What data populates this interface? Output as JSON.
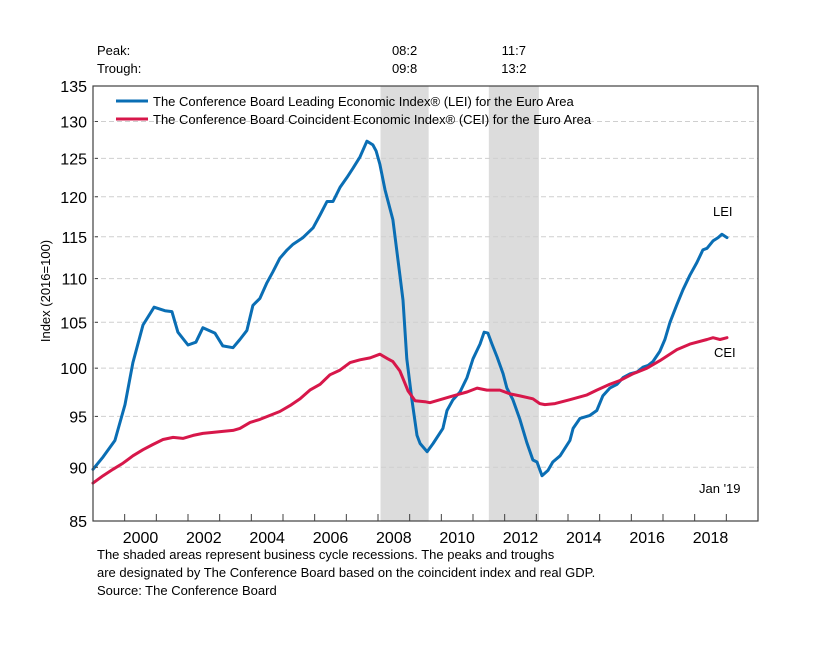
{
  "chart_data": {
    "type": "line",
    "title": "",
    "xlabel": "",
    "ylabel": "Index (2016=100)",
    "yscale": "log",
    "ylim": [
      85,
      135
    ],
    "xlim": [
      1999.0,
      2020.0
    ],
    "yticks": [
      85,
      90,
      95,
      100,
      105,
      110,
      115,
      120,
      125,
      130,
      135
    ],
    "xtick_labels": [
      "2000",
      "2002",
      "2004",
      "2006",
      "2008",
      "2010",
      "2012",
      "2014",
      "2016",
      "2018"
    ],
    "grid": "horizontal dashed",
    "legend_position": "top-left",
    "peak_trough": {
      "peak_label": "Peak:",
      "trough_label": "Trough:",
      "recessions": [
        {
          "peak": "08:2",
          "trough": "09:8",
          "start": 2008.08,
          "end": 2009.6
        },
        {
          "peak": "11:7",
          "trough": "13:2",
          "start": 2011.5,
          "end": 2013.08
        }
      ]
    },
    "annotations": {
      "lei_label": "LEI",
      "cei_label": "CEI",
      "date_label": "Jan '19"
    },
    "series": [
      {
        "name": "The Conference Board Leading Economic Index® (LEI) for the Euro Area",
        "short": "LEI",
        "color": "#0a6eb4",
        "points": [
          [
            1999.0,
            89.8
          ],
          [
            1999.32,
            91.0
          ],
          [
            1999.69,
            92.6
          ],
          [
            2000.01,
            96.2
          ],
          [
            2000.26,
            100.6
          ],
          [
            2000.58,
            104.7
          ],
          [
            2000.93,
            106.7
          ],
          [
            2001.27,
            106.3
          ],
          [
            2001.49,
            106.2
          ],
          [
            2001.68,
            103.9
          ],
          [
            2002.0,
            102.5
          ],
          [
            2002.25,
            102.8
          ],
          [
            2002.47,
            104.4
          ],
          [
            2002.85,
            103.8
          ],
          [
            2003.1,
            102.4
          ],
          [
            2003.42,
            102.2
          ],
          [
            2003.64,
            103.1
          ],
          [
            2003.86,
            104.1
          ],
          [
            2004.05,
            106.9
          ],
          [
            2004.27,
            107.7
          ],
          [
            2004.49,
            109.5
          ],
          [
            2004.68,
            110.8
          ],
          [
            2004.9,
            112.4
          ],
          [
            2005.13,
            113.4
          ],
          [
            2005.32,
            114.1
          ],
          [
            2005.63,
            114.9
          ],
          [
            2005.95,
            116.1
          ],
          [
            2006.17,
            117.7
          ],
          [
            2006.39,
            119.4
          ],
          [
            2006.58,
            119.4
          ],
          [
            2006.8,
            121.2
          ],
          [
            2007.02,
            122.5
          ],
          [
            2007.21,
            123.7
          ],
          [
            2007.43,
            125.2
          ],
          [
            2007.65,
            127.3
          ],
          [
            2007.84,
            126.8
          ],
          [
            2007.94,
            126.0
          ],
          [
            2008.06,
            124.2
          ],
          [
            2008.22,
            120.9
          ],
          [
            2008.47,
            117.1
          ],
          [
            2008.69,
            110.4
          ],
          [
            2008.79,
            107.5
          ],
          [
            2008.91,
            101.0
          ],
          [
            2009.07,
            96.7
          ],
          [
            2009.23,
            93.1
          ],
          [
            2009.33,
            92.3
          ],
          [
            2009.55,
            91.5
          ],
          [
            2009.74,
            92.3
          ],
          [
            2010.05,
            93.8
          ],
          [
            2010.18,
            95.6
          ],
          [
            2010.37,
            96.7
          ],
          [
            2010.59,
            97.5
          ],
          [
            2010.81,
            99.0
          ],
          [
            2011.0,
            101.0
          ],
          [
            2011.22,
            102.6
          ],
          [
            2011.35,
            103.9
          ],
          [
            2011.47,
            103.8
          ],
          [
            2011.6,
            102.6
          ],
          [
            2011.76,
            101.2
          ],
          [
            2011.95,
            99.4
          ],
          [
            2012.07,
            97.9
          ],
          [
            2012.26,
            96.7
          ],
          [
            2012.48,
            94.7
          ],
          [
            2012.7,
            92.4
          ],
          [
            2012.89,
            90.7
          ],
          [
            2013.02,
            90.5
          ],
          [
            2013.18,
            89.2
          ],
          [
            2013.37,
            89.7
          ],
          [
            2013.52,
            90.5
          ],
          [
            2013.75,
            91.1
          ],
          [
            2014.06,
            92.6
          ],
          [
            2014.16,
            93.8
          ],
          [
            2014.38,
            94.8
          ],
          [
            2014.69,
            95.1
          ],
          [
            2014.91,
            95.6
          ],
          [
            2015.1,
            97.1
          ],
          [
            2015.32,
            97.9
          ],
          [
            2015.55,
            98.3
          ],
          [
            2015.74,
            99.0
          ],
          [
            2015.96,
            99.4
          ],
          [
            2016.18,
            99.6
          ],
          [
            2016.37,
            100.1
          ],
          [
            2016.53,
            100.3
          ],
          [
            2016.68,
            100.7
          ],
          [
            2016.9,
            101.8
          ],
          [
            2017.06,
            103.1
          ],
          [
            2017.22,
            105.0
          ],
          [
            2017.44,
            107.0
          ],
          [
            2017.63,
            108.7
          ],
          [
            2017.85,
            110.4
          ],
          [
            2018.07,
            111.9
          ],
          [
            2018.26,
            113.4
          ],
          [
            2018.39,
            113.6
          ],
          [
            2018.58,
            114.5
          ],
          [
            2018.74,
            114.9
          ],
          [
            2018.86,
            115.3
          ],
          [
            2019.02,
            114.9
          ]
        ]
      },
      {
        "name": "The Conference Board Coincident Economic Index® (CEI) for the Euro Area",
        "short": "CEI",
        "color": "#d7174a",
        "points": [
          [
            1999.0,
            88.5
          ],
          [
            1999.32,
            89.2
          ],
          [
            1999.63,
            89.8
          ],
          [
            1999.95,
            90.4
          ],
          [
            2000.26,
            91.1
          ],
          [
            2000.58,
            91.7
          ],
          [
            2000.89,
            92.2
          ],
          [
            2001.21,
            92.7
          ],
          [
            2001.53,
            92.9
          ],
          [
            2001.84,
            92.8
          ],
          [
            2002.16,
            93.1
          ],
          [
            2002.47,
            93.3
          ],
          [
            2002.79,
            93.4
          ],
          [
            2003.1,
            93.5
          ],
          [
            2003.42,
            93.6
          ],
          [
            2003.64,
            93.8
          ],
          [
            2003.96,
            94.4
          ],
          [
            2004.27,
            94.7
          ],
          [
            2004.59,
            95.1
          ],
          [
            2004.9,
            95.5
          ],
          [
            2005.22,
            96.1
          ],
          [
            2005.54,
            96.8
          ],
          [
            2005.85,
            97.7
          ],
          [
            2006.17,
            98.3
          ],
          [
            2006.48,
            99.3
          ],
          [
            2006.8,
            99.8
          ],
          [
            2007.12,
            100.6
          ],
          [
            2007.43,
            100.9
          ],
          [
            2007.75,
            101.1
          ],
          [
            2008.06,
            101.5
          ],
          [
            2008.31,
            101.0
          ],
          [
            2008.47,
            100.7
          ],
          [
            2008.69,
            99.7
          ],
          [
            2008.95,
            97.6
          ],
          [
            2009.17,
            96.6
          ],
          [
            2009.48,
            96.5
          ],
          [
            2009.64,
            96.4
          ],
          [
            2009.96,
            96.7
          ],
          [
            2010.27,
            97.0
          ],
          [
            2010.59,
            97.3
          ],
          [
            2010.81,
            97.5
          ],
          [
            2011.13,
            97.9
          ],
          [
            2011.44,
            97.7
          ],
          [
            2011.85,
            97.7
          ],
          [
            2012.17,
            97.3
          ],
          [
            2012.48,
            97.1
          ],
          [
            2012.89,
            96.8
          ],
          [
            2013.11,
            96.3
          ],
          [
            2013.27,
            96.2
          ],
          [
            2013.59,
            96.3
          ],
          [
            2014.06,
            96.7
          ],
          [
            2014.6,
            97.2
          ],
          [
            2014.91,
            97.7
          ],
          [
            2015.32,
            98.3
          ],
          [
            2015.64,
            98.7
          ],
          [
            2016.05,
            99.4
          ],
          [
            2016.49,
            100.0
          ],
          [
            2016.9,
            100.8
          ],
          [
            2017.44,
            102.0
          ],
          [
            2017.85,
            102.6
          ],
          [
            2018.39,
            103.1
          ],
          [
            2018.58,
            103.3
          ],
          [
            2018.8,
            103.1
          ],
          [
            2019.02,
            103.3
          ]
        ]
      }
    ]
  },
  "footnote": {
    "line1": "The shaded areas represent business cycle recessions. The peaks and troughs",
    "line2": "are designated by The Conference Board based on the coincident index and real GDP.",
    "source": "Source: The Conference Board"
  }
}
